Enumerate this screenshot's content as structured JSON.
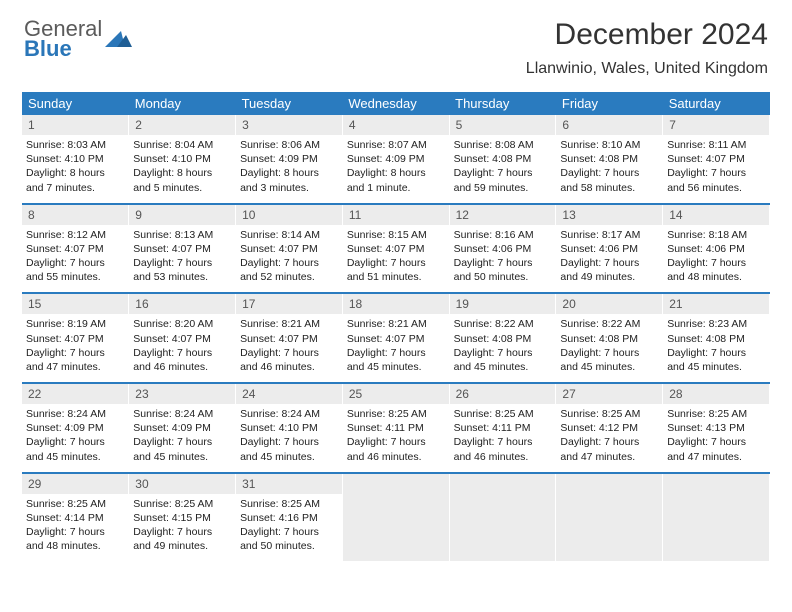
{
  "colors": {
    "header_blue": "#2a7bbf",
    "row_gray": "#ececec",
    "logo_gray": "#5b5b5b",
    "logo_blue": "#2a76b8",
    "text": "#333333"
  },
  "logo": {
    "word1": "General",
    "word2": "Blue"
  },
  "title": "December 2024",
  "location": "Llanwinio, Wales, United Kingdom",
  "day_headers": [
    "Sunday",
    "Monday",
    "Tuesday",
    "Wednesday",
    "Thursday",
    "Friday",
    "Saturday"
  ],
  "weeks": [
    [
      {
        "n": "1",
        "sunrise": "Sunrise: 8:03 AM",
        "sunset": "Sunset: 4:10 PM",
        "daylight": "Daylight: 8 hours and 7 minutes."
      },
      {
        "n": "2",
        "sunrise": "Sunrise: 8:04 AM",
        "sunset": "Sunset: 4:10 PM",
        "daylight": "Daylight: 8 hours and 5 minutes."
      },
      {
        "n": "3",
        "sunrise": "Sunrise: 8:06 AM",
        "sunset": "Sunset: 4:09 PM",
        "daylight": "Daylight: 8 hours and 3 minutes."
      },
      {
        "n": "4",
        "sunrise": "Sunrise: 8:07 AM",
        "sunset": "Sunset: 4:09 PM",
        "daylight": "Daylight: 8 hours and 1 minute."
      },
      {
        "n": "5",
        "sunrise": "Sunrise: 8:08 AM",
        "sunset": "Sunset: 4:08 PM",
        "daylight": "Daylight: 7 hours and 59 minutes."
      },
      {
        "n": "6",
        "sunrise": "Sunrise: 8:10 AM",
        "sunset": "Sunset: 4:08 PM",
        "daylight": "Daylight: 7 hours and 58 minutes."
      },
      {
        "n": "7",
        "sunrise": "Sunrise: 8:11 AM",
        "sunset": "Sunset: 4:07 PM",
        "daylight": "Daylight: 7 hours and 56 minutes."
      }
    ],
    [
      {
        "n": "8",
        "sunrise": "Sunrise: 8:12 AM",
        "sunset": "Sunset: 4:07 PM",
        "daylight": "Daylight: 7 hours and 55 minutes."
      },
      {
        "n": "9",
        "sunrise": "Sunrise: 8:13 AM",
        "sunset": "Sunset: 4:07 PM",
        "daylight": "Daylight: 7 hours and 53 minutes."
      },
      {
        "n": "10",
        "sunrise": "Sunrise: 8:14 AM",
        "sunset": "Sunset: 4:07 PM",
        "daylight": "Daylight: 7 hours and 52 minutes."
      },
      {
        "n": "11",
        "sunrise": "Sunrise: 8:15 AM",
        "sunset": "Sunset: 4:07 PM",
        "daylight": "Daylight: 7 hours and 51 minutes."
      },
      {
        "n": "12",
        "sunrise": "Sunrise: 8:16 AM",
        "sunset": "Sunset: 4:06 PM",
        "daylight": "Daylight: 7 hours and 50 minutes."
      },
      {
        "n": "13",
        "sunrise": "Sunrise: 8:17 AM",
        "sunset": "Sunset: 4:06 PM",
        "daylight": "Daylight: 7 hours and 49 minutes."
      },
      {
        "n": "14",
        "sunrise": "Sunrise: 8:18 AM",
        "sunset": "Sunset: 4:06 PM",
        "daylight": "Daylight: 7 hours and 48 minutes."
      }
    ],
    [
      {
        "n": "15",
        "sunrise": "Sunrise: 8:19 AM",
        "sunset": "Sunset: 4:07 PM",
        "daylight": "Daylight: 7 hours and 47 minutes."
      },
      {
        "n": "16",
        "sunrise": "Sunrise: 8:20 AM",
        "sunset": "Sunset: 4:07 PM",
        "daylight": "Daylight: 7 hours and 46 minutes."
      },
      {
        "n": "17",
        "sunrise": "Sunrise: 8:21 AM",
        "sunset": "Sunset: 4:07 PM",
        "daylight": "Daylight: 7 hours and 46 minutes."
      },
      {
        "n": "18",
        "sunrise": "Sunrise: 8:21 AM",
        "sunset": "Sunset: 4:07 PM",
        "daylight": "Daylight: 7 hours and 45 minutes."
      },
      {
        "n": "19",
        "sunrise": "Sunrise: 8:22 AM",
        "sunset": "Sunset: 4:08 PM",
        "daylight": "Daylight: 7 hours and 45 minutes."
      },
      {
        "n": "20",
        "sunrise": "Sunrise: 8:22 AM",
        "sunset": "Sunset: 4:08 PM",
        "daylight": "Daylight: 7 hours and 45 minutes."
      },
      {
        "n": "21",
        "sunrise": "Sunrise: 8:23 AM",
        "sunset": "Sunset: 4:08 PM",
        "daylight": "Daylight: 7 hours and 45 minutes."
      }
    ],
    [
      {
        "n": "22",
        "sunrise": "Sunrise: 8:24 AM",
        "sunset": "Sunset: 4:09 PM",
        "daylight": "Daylight: 7 hours and 45 minutes."
      },
      {
        "n": "23",
        "sunrise": "Sunrise: 8:24 AM",
        "sunset": "Sunset: 4:09 PM",
        "daylight": "Daylight: 7 hours and 45 minutes."
      },
      {
        "n": "24",
        "sunrise": "Sunrise: 8:24 AM",
        "sunset": "Sunset: 4:10 PM",
        "daylight": "Daylight: 7 hours and 45 minutes."
      },
      {
        "n": "25",
        "sunrise": "Sunrise: 8:25 AM",
        "sunset": "Sunset: 4:11 PM",
        "daylight": "Daylight: 7 hours and 46 minutes."
      },
      {
        "n": "26",
        "sunrise": "Sunrise: 8:25 AM",
        "sunset": "Sunset: 4:11 PM",
        "daylight": "Daylight: 7 hours and 46 minutes."
      },
      {
        "n": "27",
        "sunrise": "Sunrise: 8:25 AM",
        "sunset": "Sunset: 4:12 PM",
        "daylight": "Daylight: 7 hours and 47 minutes."
      },
      {
        "n": "28",
        "sunrise": "Sunrise: 8:25 AM",
        "sunset": "Sunset: 4:13 PM",
        "daylight": "Daylight: 7 hours and 47 minutes."
      }
    ],
    [
      {
        "n": "29",
        "sunrise": "Sunrise: 8:25 AM",
        "sunset": "Sunset: 4:14 PM",
        "daylight": "Daylight: 7 hours and 48 minutes."
      },
      {
        "n": "30",
        "sunrise": "Sunrise: 8:25 AM",
        "sunset": "Sunset: 4:15 PM",
        "daylight": "Daylight: 7 hours and 49 minutes."
      },
      {
        "n": "31",
        "sunrise": "Sunrise: 8:25 AM",
        "sunset": "Sunset: 4:16 PM",
        "daylight": "Daylight: 7 hours and 50 minutes."
      },
      {
        "empty": true
      },
      {
        "empty": true
      },
      {
        "empty": true
      },
      {
        "empty": true
      }
    ]
  ]
}
